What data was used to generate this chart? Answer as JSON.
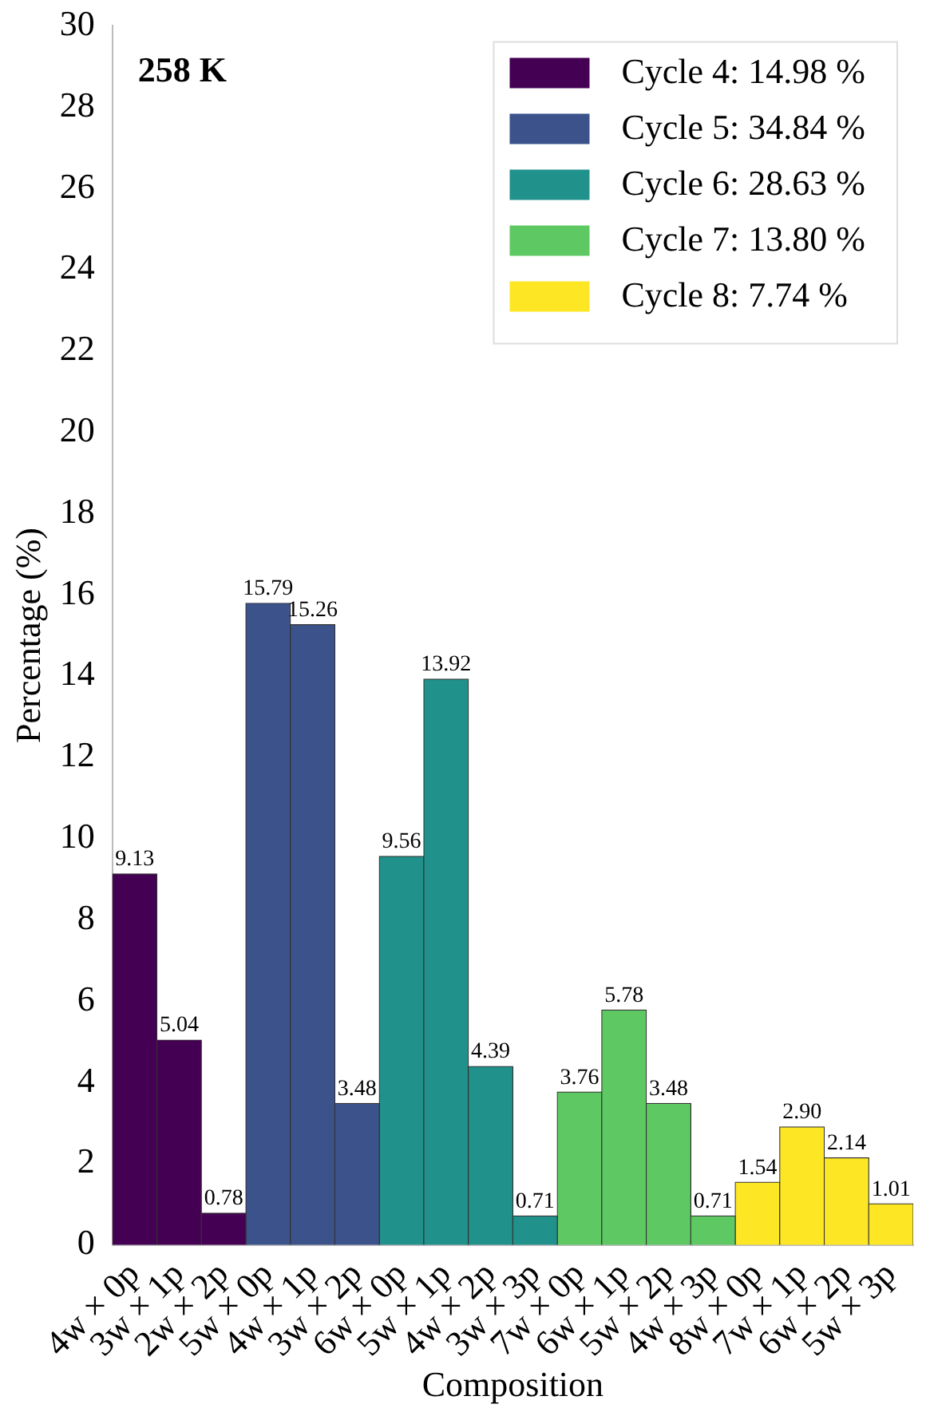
{
  "chart_data": {
    "type": "bar",
    "xlabel": "Composition",
    "ylabel": "Percentage (%)",
    "annotations": [
      "258 K"
    ],
    "categories": [
      "4w × 0p",
      "3w × 1p",
      "2w × 2p",
      "5w × 0p",
      "4w × 1p",
      "3w × 2p",
      "6w × 0p",
      "5w × 1p",
      "4w × 2p",
      "3w × 3p",
      "7w × 0p",
      "6w × 1p",
      "5w × 2p",
      "4w × 3p",
      "8w × 0p",
      "7w × 1p",
      "6w × 2p",
      "5w × 3p"
    ],
    "series": [
      {
        "name": "Cycle 4: 14.98 %",
        "color": "#440154",
        "values": [
          9.13,
          5.04,
          0.78,
          null,
          null,
          null,
          null,
          null,
          null,
          null,
          null,
          null,
          null,
          null,
          null,
          null,
          null,
          null
        ]
      },
      {
        "name": "Cycle 5: 34.84 %",
        "color": "#3b528b",
        "values": [
          null,
          null,
          null,
          15.79,
          15.26,
          3.48,
          null,
          null,
          null,
          null,
          null,
          null,
          null,
          null,
          null,
          null,
          null,
          null
        ]
      },
      {
        "name": "Cycle 6: 28.63 %",
        "color": "#21918c",
        "values": [
          null,
          null,
          null,
          null,
          null,
          null,
          9.56,
          13.92,
          4.39,
          0.71,
          null,
          null,
          null,
          null,
          null,
          null,
          null,
          null
        ]
      },
      {
        "name": "Cycle 7: 13.80 %",
        "color": "#5ec962",
        "values": [
          null,
          null,
          null,
          null,
          null,
          null,
          null,
          null,
          null,
          null,
          3.76,
          5.78,
          3.48,
          0.71,
          null,
          null,
          null,
          null
        ]
      },
      {
        "name": "Cycle 8: 7.74 %",
        "color": "#fde725",
        "values": [
          null,
          null,
          null,
          null,
          null,
          null,
          null,
          null,
          null,
          null,
          null,
          null,
          null,
          null,
          1.54,
          2.9,
          2.14,
          1.01
        ],
        "value_labels": [
          null,
          null,
          null,
          null,
          null,
          null,
          null,
          null,
          null,
          null,
          null,
          null,
          null,
          null,
          "1.54",
          "2.90",
          "2.14",
          "1.01"
        ]
      }
    ],
    "ylim": [
      0,
      30
    ],
    "yticks": [
      0,
      2,
      4,
      6,
      8,
      10,
      12,
      14,
      16,
      18,
      20,
      22,
      24,
      26,
      28,
      30
    ],
    "data_labels": true,
    "grid": false,
    "legend": "top right"
  }
}
